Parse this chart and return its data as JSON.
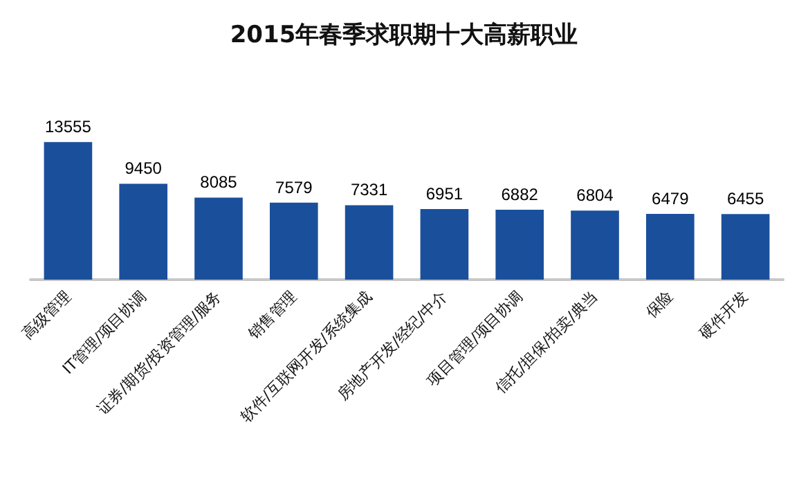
{
  "chart_data": {
    "type": "bar",
    "title": "2015年春季求职期十大高薪职业",
    "categories": [
      "高级管理",
      "IT管理/项目协调",
      "证券/期货/投资管理/服务",
      "销售管理",
      "软件/互联网开发/系统集成",
      "房地产开发/经纪/中介",
      "项目管理/项目协调",
      "信托/担保/拍卖/典当",
      "保险",
      "硬件开发"
    ],
    "values": [
      13555,
      9450,
      8085,
      7579,
      7331,
      6951,
      6882,
      6804,
      6479,
      6455
    ],
    "color": "#1a4f9c",
    "data_labels": true
  }
}
